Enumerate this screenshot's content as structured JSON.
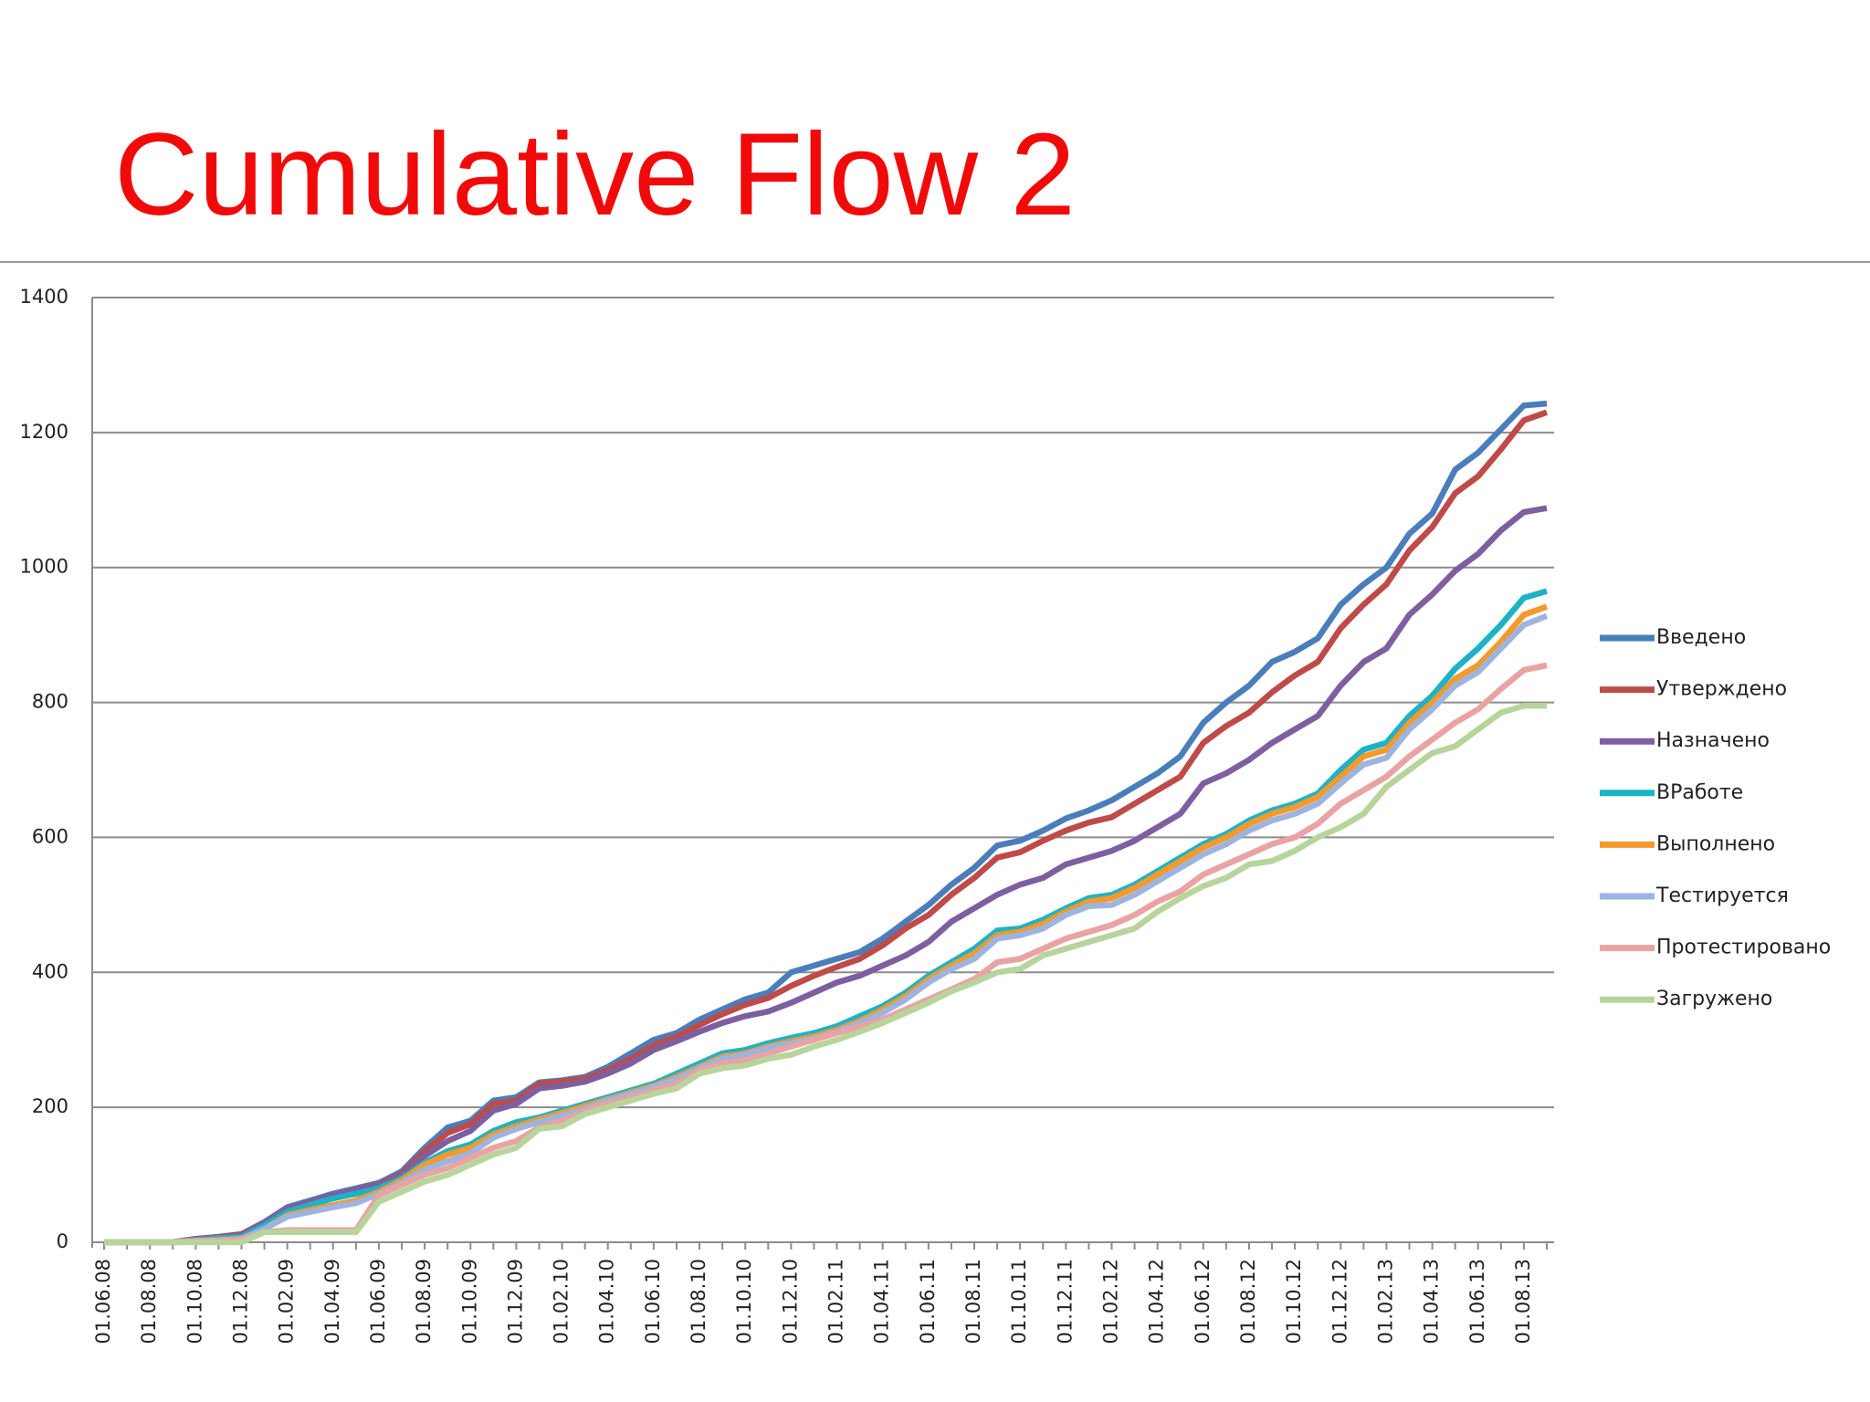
{
  "chart_data": {
    "type": "line",
    "title": "Cumulative Flow 2",
    "categories": [
      "01.06.08",
      null,
      "01.08.08",
      null,
      "01.10.08",
      null,
      "01.12.08",
      null,
      "01.02.09",
      null,
      "01.04.09",
      null,
      "01.06.09",
      null,
      "01.08.09",
      null,
      "01.10.09",
      null,
      "01.12.09",
      null,
      "01.02.10",
      null,
      "01.04.10",
      null,
      "01.06.10",
      null,
      "01.08.10",
      null,
      "01.10.10",
      null,
      "01.12.10",
      null,
      "01.02.11",
      null,
      "01.04.11",
      null,
      "01.06.11",
      null,
      "01.08.11",
      null,
      "01.10.11",
      null,
      "01.12.11",
      null,
      "01.02.12",
      null,
      "01.04.12",
      null,
      "01.06.12",
      null,
      "01.08.12",
      null,
      "01.10.12",
      null,
      "01.12.12",
      null,
      "01.02.13",
      null,
      "01.04.13",
      null,
      "01.06.13",
      null,
      "01.08.13",
      null
    ],
    "series": [
      {
        "name": "Введено",
        "color": "#4a7ebb",
        "values": [
          0,
          0,
          0,
          0,
          5,
          8,
          12,
          30,
          52,
          62,
          72,
          80,
          88,
          105,
          140,
          170,
          180,
          210,
          215,
          237,
          240,
          245,
          260,
          280,
          300,
          310,
          330,
          345,
          360,
          370,
          400,
          410,
          420,
          430,
          450,
          475,
          500,
          530,
          555,
          588,
          595,
          610,
          628,
          640,
          655,
          675,
          695,
          720,
          770,
          800,
          825,
          860,
          875,
          895,
          945,
          975,
          1000,
          1050,
          1080,
          1145,
          1170,
          1205,
          1240,
          1243
        ]
      },
      {
        "name": "Утверждено",
        "color": "#be4b48",
        "values": [
          0,
          0,
          0,
          0,
          5,
          8,
          12,
          28,
          50,
          60,
          70,
          78,
          86,
          102,
          135,
          162,
          175,
          205,
          210,
          235,
          238,
          243,
          255,
          272,
          292,
          305,
          322,
          338,
          352,
          362,
          380,
          395,
          408,
          420,
          440,
          465,
          485,
          515,
          540,
          570,
          578,
          595,
          610,
          622,
          630,
          650,
          670,
          690,
          740,
          765,
          785,
          815,
          840,
          860,
          910,
          945,
          975,
          1025,
          1060,
          1110,
          1135,
          1175,
          1218,
          1230
        ]
      },
      {
        "name": "Назначено",
        "color": "#7d5fa0",
        "values": [
          0,
          0,
          0,
          0,
          4,
          7,
          10,
          28,
          50,
          60,
          70,
          78,
          85,
          100,
          128,
          150,
          165,
          195,
          205,
          228,
          232,
          238,
          250,
          265,
          285,
          298,
          312,
          325,
          335,
          342,
          355,
          370,
          385,
          395,
          410,
          425,
          445,
          475,
          495,
          515,
          530,
          540,
          560,
          570,
          580,
          595,
          615,
          635,
          680,
          695,
          715,
          740,
          760,
          780,
          825,
          860,
          880,
          930,
          960,
          995,
          1020,
          1055,
          1082,
          1088
        ]
      },
      {
        "name": "ВРаботе",
        "color": "#1db3c6",
        "values": [
          0,
          0,
          0,
          0,
          3,
          6,
          8,
          25,
          45,
          55,
          65,
          72,
          80,
          95,
          118,
          135,
          145,
          165,
          178,
          185,
          195,
          205,
          215,
          225,
          235,
          250,
          265,
          280,
          285,
          295,
          303,
          310,
          320,
          335,
          350,
          370,
          395,
          415,
          435,
          462,
          465,
          478,
          495,
          510,
          515,
          530,
          550,
          570,
          590,
          605,
          625,
          640,
          650,
          665,
          700,
          730,
          740,
          780,
          810,
          850,
          880,
          915,
          955,
          965
        ]
      },
      {
        "name": "Выполнено",
        "color": "#f5992a",
        "values": [
          0,
          0,
          0,
          0,
          2,
          3,
          5,
          20,
          40,
          48,
          55,
          62,
          75,
          92,
          115,
          130,
          140,
          160,
          172,
          182,
          192,
          202,
          212,
          222,
          232,
          245,
          260,
          275,
          280,
          290,
          298,
          305,
          315,
          328,
          345,
          365,
          390,
          410,
          428,
          455,
          460,
          472,
          490,
          505,
          510,
          525,
          545,
          565,
          585,
          600,
          620,
          635,
          645,
          660,
          690,
          720,
          730,
          770,
          800,
          835,
          855,
          890,
          930,
          942
        ]
      },
      {
        "name": "Тестируется",
        "color": "#9db4de",
        "values": [
          0,
          0,
          0,
          0,
          2,
          3,
          5,
          20,
          38,
          45,
          52,
          58,
          72,
          88,
          108,
          120,
          132,
          155,
          168,
          178,
          188,
          198,
          210,
          220,
          230,
          242,
          258,
          272,
          278,
          288,
          295,
          302,
          312,
          325,
          340,
          360,
          385,
          405,
          420,
          450,
          455,
          465,
          485,
          498,
          500,
          515,
          535,
          555,
          575,
          590,
          610,
          625,
          635,
          650,
          680,
          708,
          718,
          760,
          790,
          825,
          845,
          880,
          915,
          928
        ]
      },
      {
        "name": "Протестировано",
        "color": "#e9a3a2",
        "values": [
          0,
          0,
          0,
          0,
          2,
          3,
          5,
          15,
          18,
          18,
          18,
          18,
          70,
          85,
          100,
          110,
          125,
          140,
          150,
          170,
          180,
          195,
          205,
          215,
          225,
          235,
          255,
          265,
          270,
          280,
          290,
          300,
          310,
          320,
          330,
          345,
          360,
          375,
          390,
          415,
          420,
          435,
          450,
          460,
          470,
          485,
          505,
          520,
          545,
          560,
          575,
          590,
          600,
          620,
          650,
          670,
          690,
          720,
          745,
          770,
          790,
          820,
          848,
          855
        ]
      },
      {
        "name": "Загружено",
        "color": "#b7d59b",
        "values": [
          0,
          0,
          0,
          0,
          0,
          0,
          0,
          15,
          15,
          15,
          15,
          15,
          60,
          75,
          90,
          100,
          115,
          130,
          140,
          168,
          172,
          190,
          200,
          210,
          220,
          228,
          250,
          258,
          262,
          272,
          278,
          290,
          300,
          312,
          325,
          340,
          355,
          372,
          385,
          400,
          405,
          425,
          435,
          445,
          455,
          465,
          490,
          510,
          528,
          540,
          560,
          565,
          580,
          600,
          615,
          635,
          675,
          700,
          725,
          735,
          760,
          785,
          795,
          795
        ]
      }
    ],
    "ylim": [
      0,
      1400
    ],
    "yticks": [
      0,
      200,
      400,
      600,
      800,
      1000,
      1200,
      1400
    ],
    "grid": true,
    "legend": "right"
  }
}
